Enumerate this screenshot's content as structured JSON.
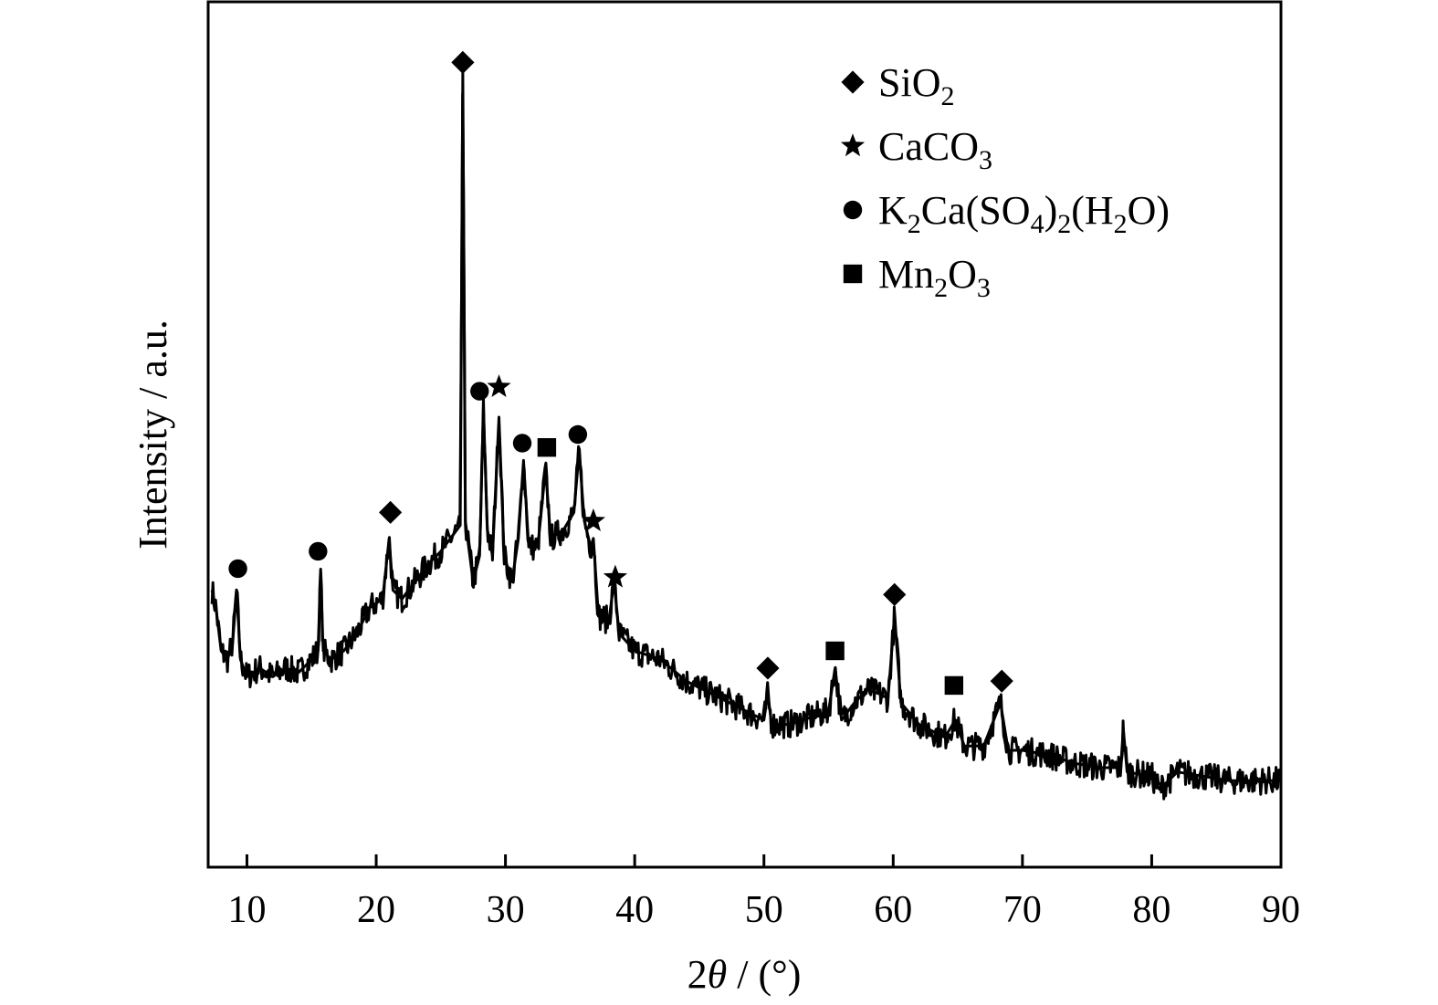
{
  "chart_data": {
    "type": "line",
    "title": "",
    "xlabel_prefix": "2",
    "xlabel_theta": "θ",
    "xlabel_suffix": " / (°)",
    "ylabel": "Intensity / a.u.",
    "xlim": [
      7,
      90
    ],
    "ylim": [
      0,
      100
    ],
    "xticks": [
      10,
      20,
      30,
      40,
      50,
      60,
      70,
      80,
      90
    ],
    "yticks_shown": false,
    "grid": false,
    "legend_position": "top-right",
    "line_color": "#000000",
    "legend": [
      {
        "marker": "diamond",
        "parts": [
          {
            "t": "SiO"
          },
          {
            "t": "2",
            "sub": true
          }
        ]
      },
      {
        "marker": "star",
        "parts": [
          {
            "t": "CaCO"
          },
          {
            "t": "3",
            "sub": true
          }
        ]
      },
      {
        "marker": "circle",
        "parts": [
          {
            "t": "K"
          },
          {
            "t": "2",
            "sub": true
          },
          {
            "t": "Ca(SO"
          },
          {
            "t": "4",
            "sub": true
          },
          {
            "t": ")"
          },
          {
            "t": "2",
            "sub": true
          },
          {
            "t": "(H"
          },
          {
            "t": "2",
            "sub": true
          },
          {
            "t": "O)"
          }
        ]
      },
      {
        "marker": "square",
        "parts": [
          {
            "t": "Mn"
          },
          {
            "t": "2",
            "sub": true
          },
          {
            "t": "O"
          },
          {
            "t": "3",
            "sub": true
          }
        ]
      }
    ],
    "series": [
      {
        "points": [
          [
            7.3,
            32
          ],
          [
            7.6,
            30
          ],
          [
            8.0,
            25
          ],
          [
            8.5,
            24
          ],
          [
            8.9,
            26
          ],
          [
            9.2,
            32
          ],
          [
            9.5,
            24
          ],
          [
            10.0,
            22
          ],
          [
            11.0,
            23
          ],
          [
            12.0,
            22
          ],
          [
            13.0,
            23
          ],
          [
            14.0,
            22.5
          ],
          [
            15.0,
            24
          ],
          [
            15.5,
            25
          ],
          [
            15.7,
            34
          ],
          [
            15.9,
            25
          ],
          [
            16.5,
            24
          ],
          [
            17.5,
            25
          ],
          [
            18.5,
            27
          ],
          [
            19.5,
            30
          ],
          [
            20.5,
            31
          ],
          [
            21.0,
            38
          ],
          [
            21.3,
            32
          ],
          [
            22.0,
            31
          ],
          [
            23.0,
            33
          ],
          [
            24.0,
            35
          ],
          [
            25.0,
            36.5
          ],
          [
            26.0,
            38.5
          ],
          [
            26.5,
            39.5
          ],
          [
            26.7,
            92
          ],
          [
            26.9,
            40
          ],
          [
            27.5,
            33
          ],
          [
            28.0,
            36
          ],
          [
            28.3,
            53
          ],
          [
            28.6,
            39
          ],
          [
            29.0,
            36
          ],
          [
            29.5,
            52
          ],
          [
            29.9,
            36
          ],
          [
            30.5,
            33
          ],
          [
            31.0,
            38
          ],
          [
            31.4,
            47
          ],
          [
            31.8,
            37
          ],
          [
            32.5,
            37
          ],
          [
            33.1,
            46
          ],
          [
            33.5,
            38
          ],
          [
            34.5,
            39
          ],
          [
            35.3,
            41
          ],
          [
            35.7,
            48
          ],
          [
            36.1,
            40
          ],
          [
            36.6,
            37
          ],
          [
            36.8,
            38
          ],
          [
            37.2,
            29
          ],
          [
            38.0,
            28.5
          ],
          [
            38.4,
            33
          ],
          [
            38.8,
            27
          ],
          [
            40.0,
            25
          ],
          [
            42.0,
            24
          ],
          [
            44.0,
            21.5
          ],
          [
            46.0,
            20
          ],
          [
            48.0,
            18.5
          ],
          [
            50.0,
            17
          ],
          [
            50.3,
            20
          ],
          [
            50.6,
            16.5
          ],
          [
            52.0,
            16.5
          ],
          [
            54.0,
            17.5
          ],
          [
            55.0,
            18
          ],
          [
            55.5,
            23
          ],
          [
            56.0,
            17
          ],
          [
            57.0,
            19
          ],
          [
            58.0,
            20.5
          ],
          [
            59.0,
            20
          ],
          [
            59.6,
            19.5
          ],
          [
            60.1,
            29
          ],
          [
            60.6,
            19
          ],
          [
            62.0,
            16.5
          ],
          [
            64.0,
            15
          ],
          [
            64.8,
            17
          ],
          [
            65.5,
            14
          ],
          [
            67.0,
            14
          ],
          [
            68.3,
            19
          ],
          [
            68.9,
            13.5
          ],
          [
            70.0,
            13.5
          ],
          [
            72.0,
            13
          ],
          [
            74.0,
            12
          ],
          [
            76.0,
            11.5
          ],
          [
            77.6,
            11.5
          ],
          [
            77.8,
            16
          ],
          [
            78.1,
            11
          ],
          [
            80.0,
            10.5
          ],
          [
            80.6,
            9
          ],
          [
            82.0,
            11
          ],
          [
            84.0,
            10.5
          ],
          [
            86.0,
            10
          ],
          [
            88.0,
            10
          ],
          [
            90.0,
            10
          ]
        ]
      }
    ],
    "markers": [
      {
        "x": 9.3,
        "y": 34.5,
        "type": "circle"
      },
      {
        "x": 15.5,
        "y": 36.5,
        "type": "circle"
      },
      {
        "x": 21.1,
        "y": 41,
        "type": "diamond"
      },
      {
        "x": 26.7,
        "y": 93,
        "type": "diamond"
      },
      {
        "x": 28.0,
        "y": 55,
        "type": "circle"
      },
      {
        "x": 29.5,
        "y": 55.5,
        "type": "star"
      },
      {
        "x": 31.3,
        "y": 49,
        "type": "circle"
      },
      {
        "x": 33.2,
        "y": 48.5,
        "type": "square"
      },
      {
        "x": 35.6,
        "y": 50,
        "type": "circle"
      },
      {
        "x": 36.8,
        "y": 40,
        "type": "star"
      },
      {
        "x": 38.5,
        "y": 33.5,
        "type": "star"
      },
      {
        "x": 50.3,
        "y": 23,
        "type": "diamond"
      },
      {
        "x": 55.5,
        "y": 25,
        "type": "square"
      },
      {
        "x": 60.1,
        "y": 31.5,
        "type": "diamond"
      },
      {
        "x": 64.7,
        "y": 21,
        "type": "square"
      },
      {
        "x": 68.4,
        "y": 21.5,
        "type": "diamond"
      }
    ]
  }
}
